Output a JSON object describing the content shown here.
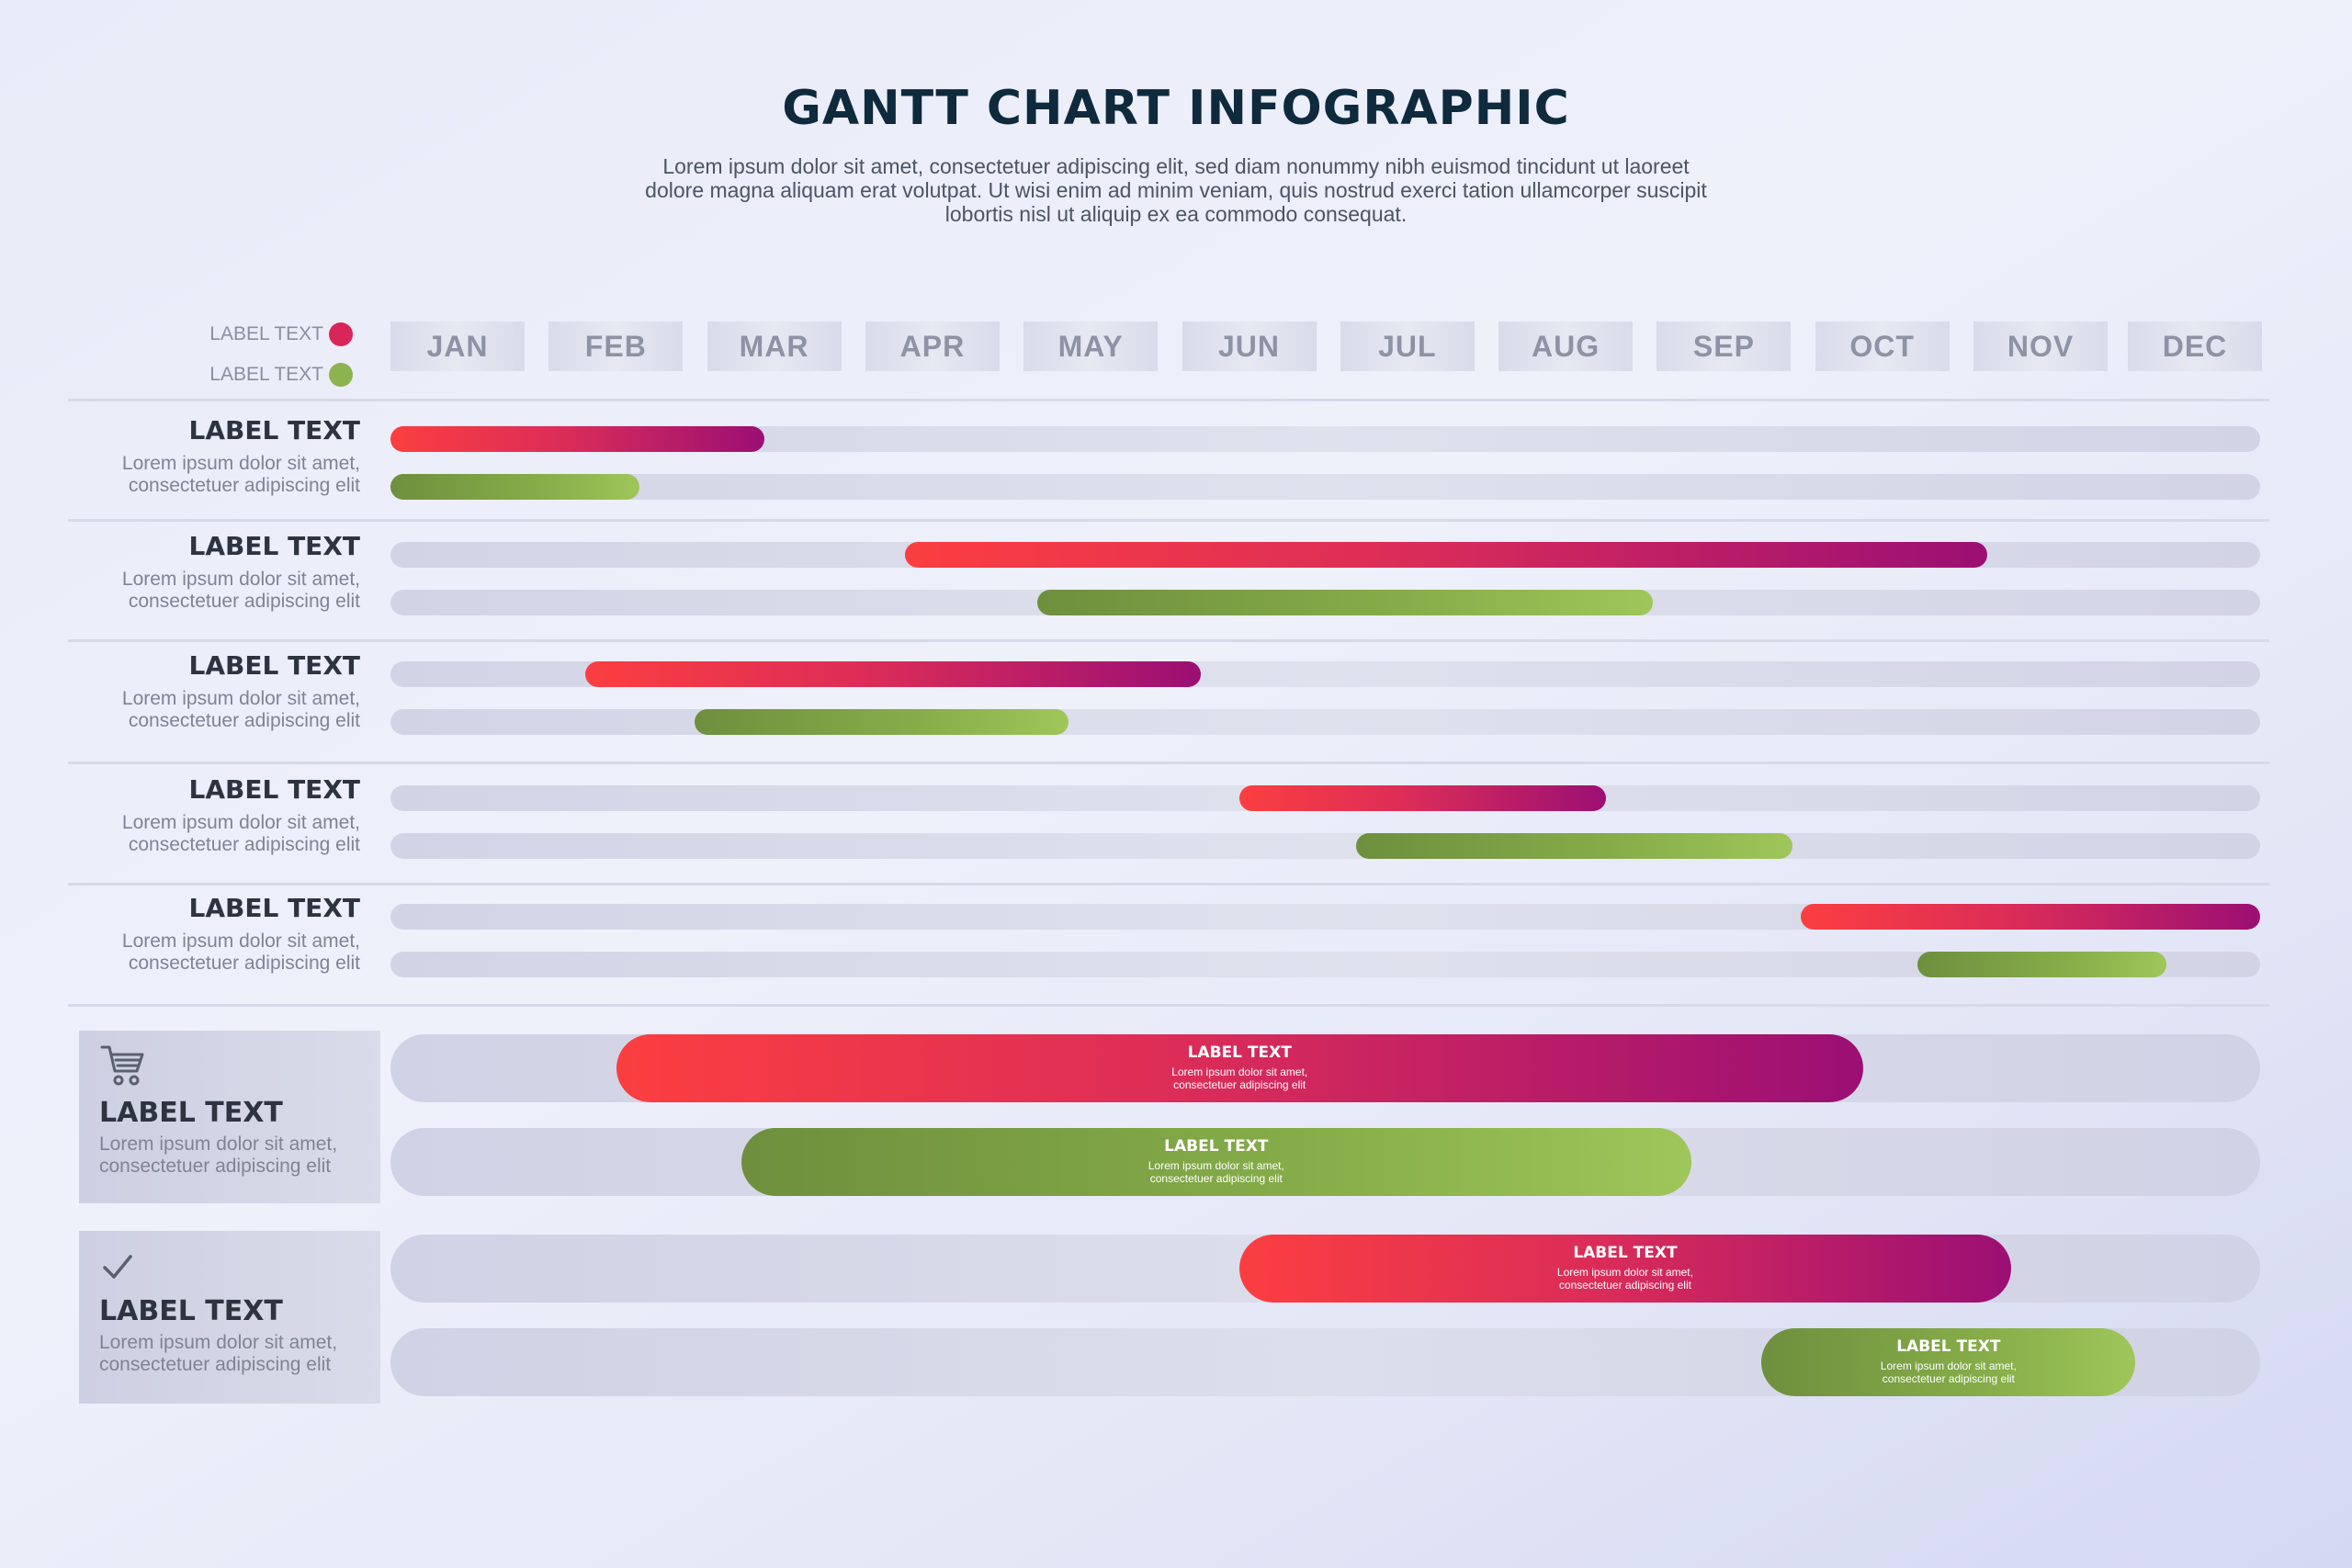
{
  "title": "GANTT CHART INFOGRAPHIC",
  "subtitle": "Lorem ipsum dolor sit amet, consectetuer adipiscing elit, sed diam nonummy nibh euismod tincidunt ut laoreet dolore magna aliquam erat volutpat. Ut wisi enim ad minim veniam, quis nostrud exerci tation ullamcorper suscipit lobortis nisl ut aliquip ex ea commodo consequat.",
  "colors": {
    "red": "#fb3e40",
    "magenta": "#9b0f74",
    "green": "#8cb44e",
    "title": "#0e2a3c"
  },
  "legend": [
    {
      "label": "LABEL TEXT",
      "color": "#d9265a"
    },
    {
      "label": "LABEL TEXT",
      "color": "#8cb44e"
    }
  ],
  "chart_data": {
    "type": "gantt",
    "title": "GANTT CHART INFOGRAPHIC",
    "months": [
      "JAN",
      "FEB",
      "MAR",
      "APR",
      "MAY",
      "JUN",
      "JUL",
      "AUG",
      "SEP",
      "OCT",
      "NOV",
      "DEC"
    ],
    "x_unit": "month index (0 = start of JAN, 12 = end of DEC)",
    "rows": [
      {
        "label": "LABEL TEXT",
        "desc": [
          "Lorem ipsum dolor sit amet,",
          "consectetuer adipiscing elit"
        ],
        "red": [
          0.0,
          2.4
        ],
        "green": [
          0.0,
          1.6
        ]
      },
      {
        "label": "LABEL TEXT",
        "desc": [
          "Lorem ipsum dolor sit amet,",
          "consectetuer adipiscing elit"
        ],
        "red": [
          3.3,
          10.25
        ],
        "green": [
          4.15,
          8.1
        ]
      },
      {
        "label": "LABEL TEXT",
        "desc": [
          "Lorem ipsum dolor sit amet,",
          "consectetuer adipiscing elit"
        ],
        "red": [
          1.25,
          5.2
        ],
        "green": [
          1.95,
          4.35
        ]
      },
      {
        "label": "LABEL TEXT",
        "desc": [
          "Lorem ipsum dolor sit amet,",
          "consectetuer adipiscing elit"
        ],
        "red": [
          5.45,
          7.8
        ],
        "green": [
          6.2,
          9.0
        ]
      },
      {
        "label": "LABEL TEXT",
        "desc": [
          "Lorem ipsum dolor sit amet,",
          "consectetuer adipiscing elit"
        ],
        "red": [
          9.05,
          12.0
        ],
        "green": [
          9.8,
          11.4
        ]
      }
    ],
    "big_rows": [
      {
        "icon": "cart-icon",
        "label": "LABEL TEXT",
        "desc": [
          "Lorem ipsum dolor sit amet,",
          "consectetuer adipiscing elit"
        ],
        "bars": [
          {
            "color": "red",
            "start": 1.45,
            "end": 9.45,
            "label": "LABEL TEXT",
            "desc": [
              "Lorem ipsum dolor sit amet,",
              "consectetuer adipiscing elit"
            ]
          },
          {
            "color": "green",
            "start": 2.25,
            "end": 8.35,
            "label": "LABEL TEXT",
            "desc": [
              "Lorem ipsum dolor sit amet,",
              "consectetuer adipiscing elit"
            ]
          }
        ]
      },
      {
        "icon": "check-icon",
        "label": "LABEL TEXT",
        "desc": [
          "Lorem ipsum dolor sit amet,",
          "consectetuer adipiscing elit"
        ],
        "bars": [
          {
            "color": "red",
            "start": 5.45,
            "end": 10.4,
            "label": "LABEL TEXT",
            "desc": [
              "Lorem ipsum dolor sit amet,",
              "consectetuer adipiscing elit"
            ]
          },
          {
            "color": "green",
            "start": 8.8,
            "end": 11.2,
            "label": "LABEL TEXT",
            "desc": [
              "Lorem ipsum dolor sit amet,",
              "consectetuer adipiscing elit"
            ]
          }
        ]
      }
    ]
  }
}
